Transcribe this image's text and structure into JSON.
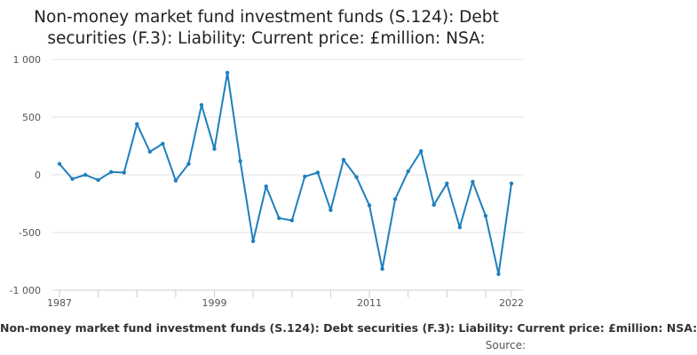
{
  "chart_data": {
    "type": "line",
    "title_lines": [
      "Non-money market fund investment funds (S.124): Debt",
      "securities (F.3): Liability: Current price: £million: NSA:"
    ],
    "series": [
      {
        "name": "Non-money market fund investment funds (S.124): Debt securities (F.3): Liability: Current price: £million: NSA:",
        "color": "#1f7fbd",
        "x": [
          1987,
          1988,
          1989,
          1990,
          1991,
          1992,
          1993,
          1994,
          1995,
          1996,
          1997,
          1998,
          1999,
          2000,
          2001,
          2002,
          2003,
          2004,
          2005,
          2006,
          2007,
          2008,
          2009,
          2010,
          2011,
          2012,
          2013,
          2014,
          2015,
          2016,
          2017,
          2018,
          2019,
          2020,
          2021,
          2022
        ],
        "values": [
          95,
          -35,
          0,
          -45,
          25,
          20,
          440,
          200,
          270,
          -50,
          95,
          605,
          225,
          885,
          120,
          -575,
          -100,
          -375,
          -395,
          -15,
          20,
          -305,
          130,
          -20,
          -265,
          -815,
          -210,
          30,
          205,
          -260,
          -75,
          -455,
          -60,
          -355,
          -860,
          -75
        ]
      }
    ],
    "ylim": [
      -1000,
      1000
    ],
    "yticks": [
      -1000,
      -500,
      0,
      500,
      1000
    ],
    "ytick_labels": [
      "-1 000",
      "-500",
      "0",
      "500",
      "1 000"
    ],
    "xlim": [
      1987,
      2022
    ],
    "xticks_labeled": [
      1987,
      1999,
      2011,
      2022
    ],
    "xtick_labels": [
      "1987",
      "1999",
      "2011",
      "2022"
    ],
    "xticks_minor": [
      1987,
      1990,
      1993,
      1996,
      1999,
      2002,
      2005,
      2008,
      2011,
      2014,
      2017,
      2020,
      2022
    ],
    "grid": true,
    "legend_placement": "bottom"
  },
  "source_label": "Source:"
}
